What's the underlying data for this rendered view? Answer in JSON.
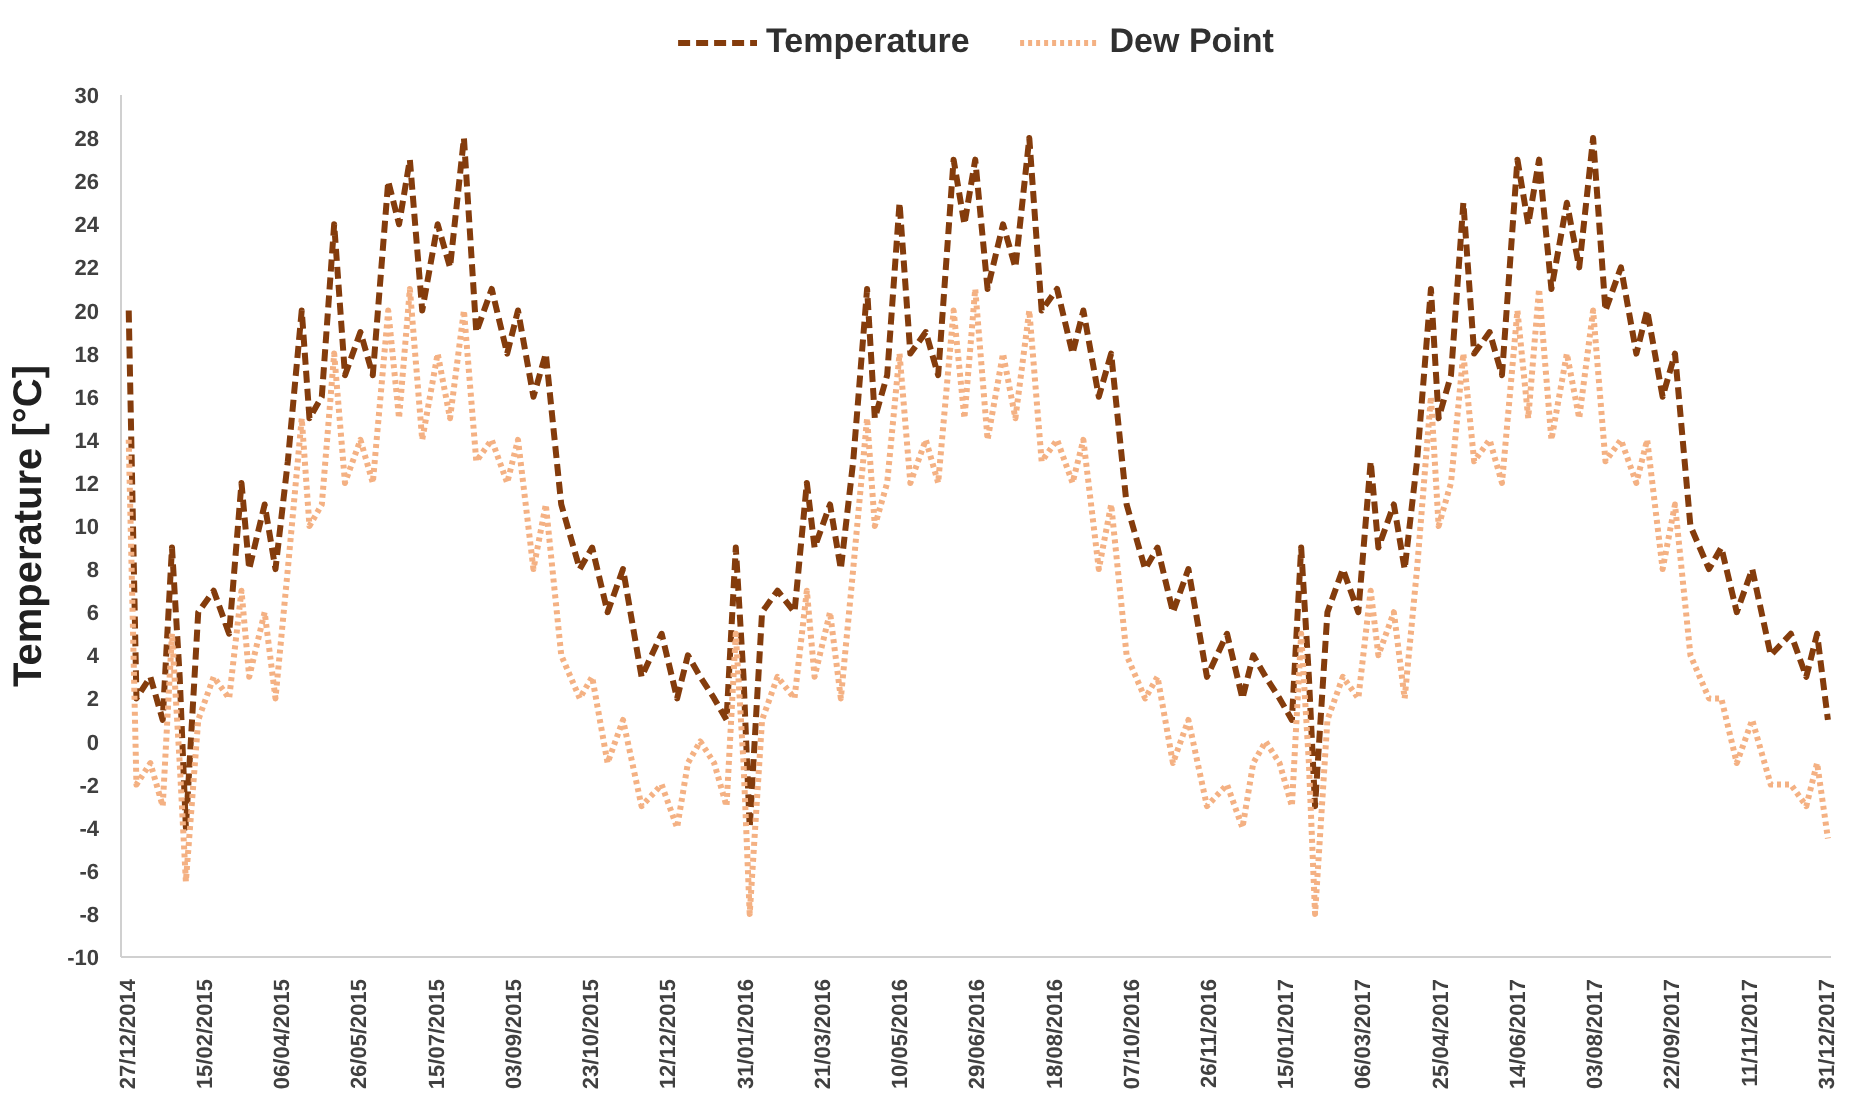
{
  "chart_data": {
    "type": "line",
    "ylabel": "Temperature [°C]",
    "x": [
      "2014-12-27",
      "2015-01-01",
      "2015-01-10",
      "2015-01-18",
      "2015-01-24",
      "2015-01-29",
      "2015-02-02",
      "2015-02-10",
      "2015-02-20",
      "2015-03-02",
      "2015-03-10",
      "2015-03-15",
      "2015-03-25",
      "2015-04-01",
      "2015-04-09",
      "2015-04-18",
      "2015-04-23",
      "2015-05-01",
      "2015-05-09",
      "2015-05-16",
      "2015-05-26",
      "2015-06-03",
      "2015-06-13",
      "2015-06-20",
      "2015-06-27",
      "2015-07-05",
      "2015-07-15",
      "2015-07-23",
      "2015-08-01",
      "2015-08-09",
      "2015-08-19",
      "2015-08-29",
      "2015-09-05",
      "2015-09-15",
      "2015-09-23",
      "2015-10-03",
      "2015-10-15",
      "2015-10-23",
      "2015-11-02",
      "2015-11-12",
      "2015-11-24",
      "2015-12-07",
      "2015-12-17",
      "2015-12-24",
      "2016-01-01",
      "2016-01-10",
      "2016-01-18",
      "2016-01-24",
      "2016-01-29",
      "2016-02-02",
      "2016-02-10",
      "2016-02-20",
      "2016-03-02",
      "2016-03-10",
      "2016-03-15",
      "2016-03-25",
      "2016-04-01",
      "2016-04-09",
      "2016-04-18",
      "2016-04-23",
      "2016-05-01",
      "2016-05-09",
      "2016-05-16",
      "2016-05-26",
      "2016-06-03",
      "2016-06-13",
      "2016-06-20",
      "2016-06-27",
      "2016-07-05",
      "2016-07-15",
      "2016-07-23",
      "2016-08-01",
      "2016-08-09",
      "2016-08-19",
      "2016-08-29",
      "2016-09-05",
      "2016-09-15",
      "2016-09-23",
      "2016-10-03",
      "2016-10-15",
      "2016-10-23",
      "2016-11-02",
      "2016-11-12",
      "2016-11-24",
      "2016-12-07",
      "2016-12-17",
      "2016-12-24",
      "2017-01-01",
      "2017-01-10",
      "2017-01-18",
      "2017-01-24",
      "2017-01-29",
      "2017-02-02",
      "2017-02-10",
      "2017-02-20",
      "2017-03-02",
      "2017-03-10",
      "2017-03-15",
      "2017-03-25",
      "2017-04-01",
      "2017-04-09",
      "2017-04-18",
      "2017-04-23",
      "2017-05-01",
      "2017-05-09",
      "2017-05-16",
      "2017-05-26",
      "2017-06-03",
      "2017-06-13",
      "2017-06-20",
      "2017-06-27",
      "2017-07-05",
      "2017-07-15",
      "2017-07-23",
      "2017-08-01",
      "2017-08-09",
      "2017-08-19",
      "2017-08-29",
      "2017-09-05",
      "2017-09-15",
      "2017-09-23",
      "2017-10-03",
      "2017-10-15",
      "2017-10-23",
      "2017-11-02",
      "2017-11-12",
      "2017-11-24",
      "2017-12-07",
      "2017-12-17",
      "2017-12-24",
      "2017-12-31"
    ],
    "series": [
      {
        "name": "Temperature",
        "color": "#843c0c",
        "line_style": "dashed",
        "values": [
          20,
          2,
          3,
          1,
          9,
          3,
          -4,
          6,
          7,
          5,
          12,
          8,
          11,
          8,
          13,
          20,
          15,
          16,
          24,
          17,
          19,
          17,
          26,
          24,
          27,
          20,
          24,
          22,
          28,
          19,
          21,
          18,
          20,
          16,
          18,
          11,
          8,
          9,
          6,
          8,
          3,
          5,
          2,
          4,
          3,
          2,
          1,
          9,
          3,
          -4,
          6,
          7,
          6,
          12,
          9,
          11,
          8,
          13,
          21,
          15,
          17,
          25,
          18,
          19,
          17,
          27,
          24,
          27,
          21,
          24,
          22,
          28,
          20,
          21,
          18,
          20,
          16,
          18,
          11,
          8,
          9,
          6,
          8,
          3,
          5,
          2,
          4,
          3,
          2,
          1,
          9,
          3,
          -3,
          6,
          8,
          6,
          13,
          9,
          11,
          8,
          13,
          21,
          15,
          17,
          25,
          18,
          19,
          17,
          27,
          24,
          27,
          21,
          25,
          22,
          28,
          20,
          22,
          18,
          20,
          16,
          18,
          10,
          8,
          9,
          6,
          8,
          4,
          5,
          3,
          5,
          1
        ]
      },
      {
        "name": "Dew Point",
        "color": "#f4b183",
        "line_style": "dotted",
        "values": [
          14,
          -2,
          -1,
          -3,
          5,
          -1,
          -6.5,
          1,
          3,
          2,
          7,
          3,
          6,
          2,
          8,
          15,
          10,
          11,
          18,
          12,
          14,
          12,
          20,
          15,
          21,
          14,
          18,
          15,
          20,
          13,
          14,
          12,
          14,
          8,
          11,
          4,
          2,
          3,
          -1,
          1,
          -3,
          -2,
          -4,
          -1,
          0,
          -1,
          -3,
          5,
          -1,
          -8,
          1,
          3,
          2,
          7,
          3,
          6,
          2,
          8,
          15,
          10,
          12,
          18,
          12,
          14,
          12,
          20,
          15,
          21,
          14,
          18,
          15,
          20,
          13,
          14,
          12,
          14,
          8,
          11,
          4,
          2,
          3,
          -1,
          1,
          -3,
          -2,
          -4,
          -1,
          0,
          -1,
          -3,
          5,
          -1,
          -8,
          1,
          3,
          2,
          7,
          4,
          6,
          2,
          8,
          16,
          10,
          12,
          18,
          13,
          14,
          12,
          20,
          15,
          21,
          14,
          18,
          15,
          20,
          13,
          14,
          12,
          14,
          8,
          11,
          4,
          2,
          2,
          -1,
          1,
          -2,
          -2,
          -3,
          -1,
          -4.5
        ]
      }
    ],
    "xlim": [
      "2014-12-22",
      "2018-01-02"
    ],
    "xticks": [
      {
        "value": "2014-12-27",
        "label": "27/12/2014"
      },
      {
        "value": "2015-02-15",
        "label": "15/02/2015"
      },
      {
        "value": "2015-04-06",
        "label": "06/04/2015"
      },
      {
        "value": "2015-05-26",
        "label": "26/05/2015"
      },
      {
        "value": "2015-07-15",
        "label": "15/07/2015"
      },
      {
        "value": "2015-09-03",
        "label": "03/09/2015"
      },
      {
        "value": "2015-10-23",
        "label": "23/10/2015"
      },
      {
        "value": "2015-12-12",
        "label": "12/12/2015"
      },
      {
        "value": "2016-01-31",
        "label": "31/01/2016"
      },
      {
        "value": "2016-03-21",
        "label": "21/03/2016"
      },
      {
        "value": "2016-05-10",
        "label": "10/05/2016"
      },
      {
        "value": "2016-06-29",
        "label": "29/06/2016"
      },
      {
        "value": "2016-08-18",
        "label": "18/08/2016"
      },
      {
        "value": "2016-10-07",
        "label": "07/10/2016"
      },
      {
        "value": "2016-11-26",
        "label": "26/11/2016"
      },
      {
        "value": "2017-01-15",
        "label": "15/01/2017"
      },
      {
        "value": "2017-03-06",
        "label": "06/03/2017"
      },
      {
        "value": "2017-04-25",
        "label": "25/04/2017"
      },
      {
        "value": "2017-06-14",
        "label": "14/06/2017"
      },
      {
        "value": "2017-08-03",
        "label": "03/08/2017"
      },
      {
        "value": "2017-09-22",
        "label": "22/09/2017"
      },
      {
        "value": "2017-11-11",
        "label": "11/11/2017"
      },
      {
        "value": "2017-12-31",
        "label": "31/12/2017"
      }
    ],
    "ylim": [
      -10,
      30
    ],
    "yticks": [
      -10,
      -8,
      -6,
      -4,
      -2,
      0,
      2,
      4,
      6,
      8,
      10,
      12,
      14,
      16,
      18,
      20,
      22,
      24,
      26,
      28,
      30
    ],
    "legend": "top"
  }
}
